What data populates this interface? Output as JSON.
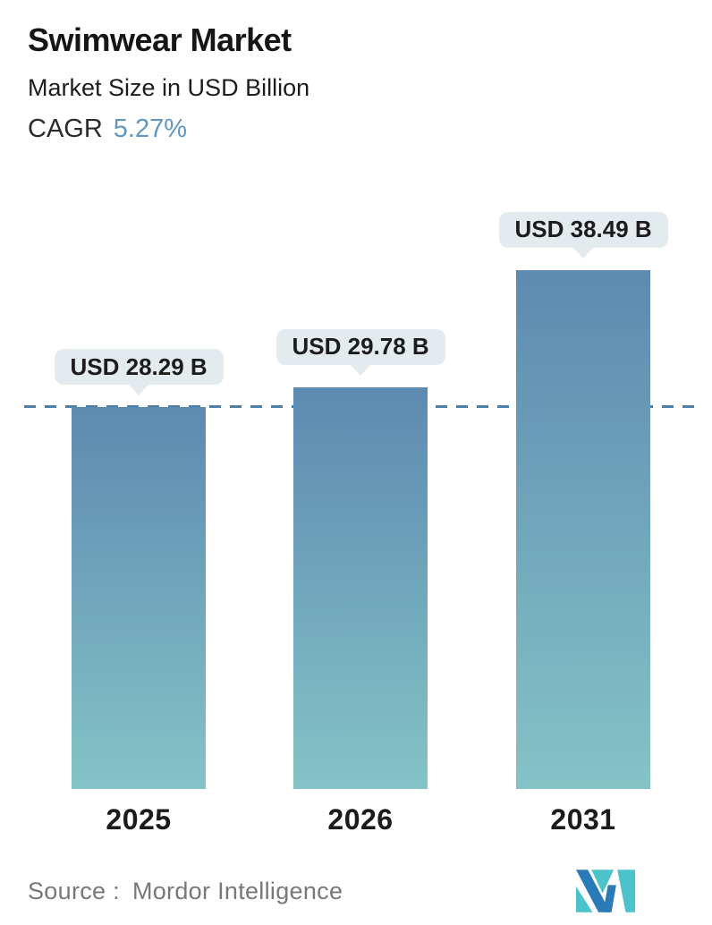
{
  "header": {
    "title": "Swimwear Market",
    "subtitle": "Market Size in USD Billion",
    "cagr_label": "CAGR",
    "cagr_value": "5.27%"
  },
  "chart_data": {
    "type": "bar",
    "title": "Swimwear Market",
    "subtitle": "Market Size in USD Billion",
    "cagr": "5.27%",
    "categories": [
      "2025",
      "2026",
      "2031"
    ],
    "values": [
      28.29,
      29.78,
      38.49
    ],
    "bar_labels": [
      "USD 28.29 B",
      "USD 29.78 B",
      "USD 38.49 B"
    ],
    "unit": "USD Billion",
    "ylim": [
      0,
      40
    ],
    "grid": false,
    "legend": false,
    "reference_line": {
      "style": "dashed",
      "value": 28.29,
      "note": "level of first bar (2025)"
    }
  },
  "footer": {
    "source_label": "Source :",
    "source_value": "Mordor Intelligence",
    "logo_name": "mordor-intelligence-logo"
  },
  "colors": {
    "bar_gradient_top": "#5d8ab1",
    "bar_gradient_bottom": "#84c3c6",
    "dashed_line": "#4d7ea6",
    "bubble_bg": "#e4ebee",
    "cagr_accent": "#6196c3",
    "text_dark": "#1c1c1c",
    "source_gray": "#787878",
    "logo_blue": "#2b7ab8",
    "logo_teal": "#4cc3cb"
  }
}
